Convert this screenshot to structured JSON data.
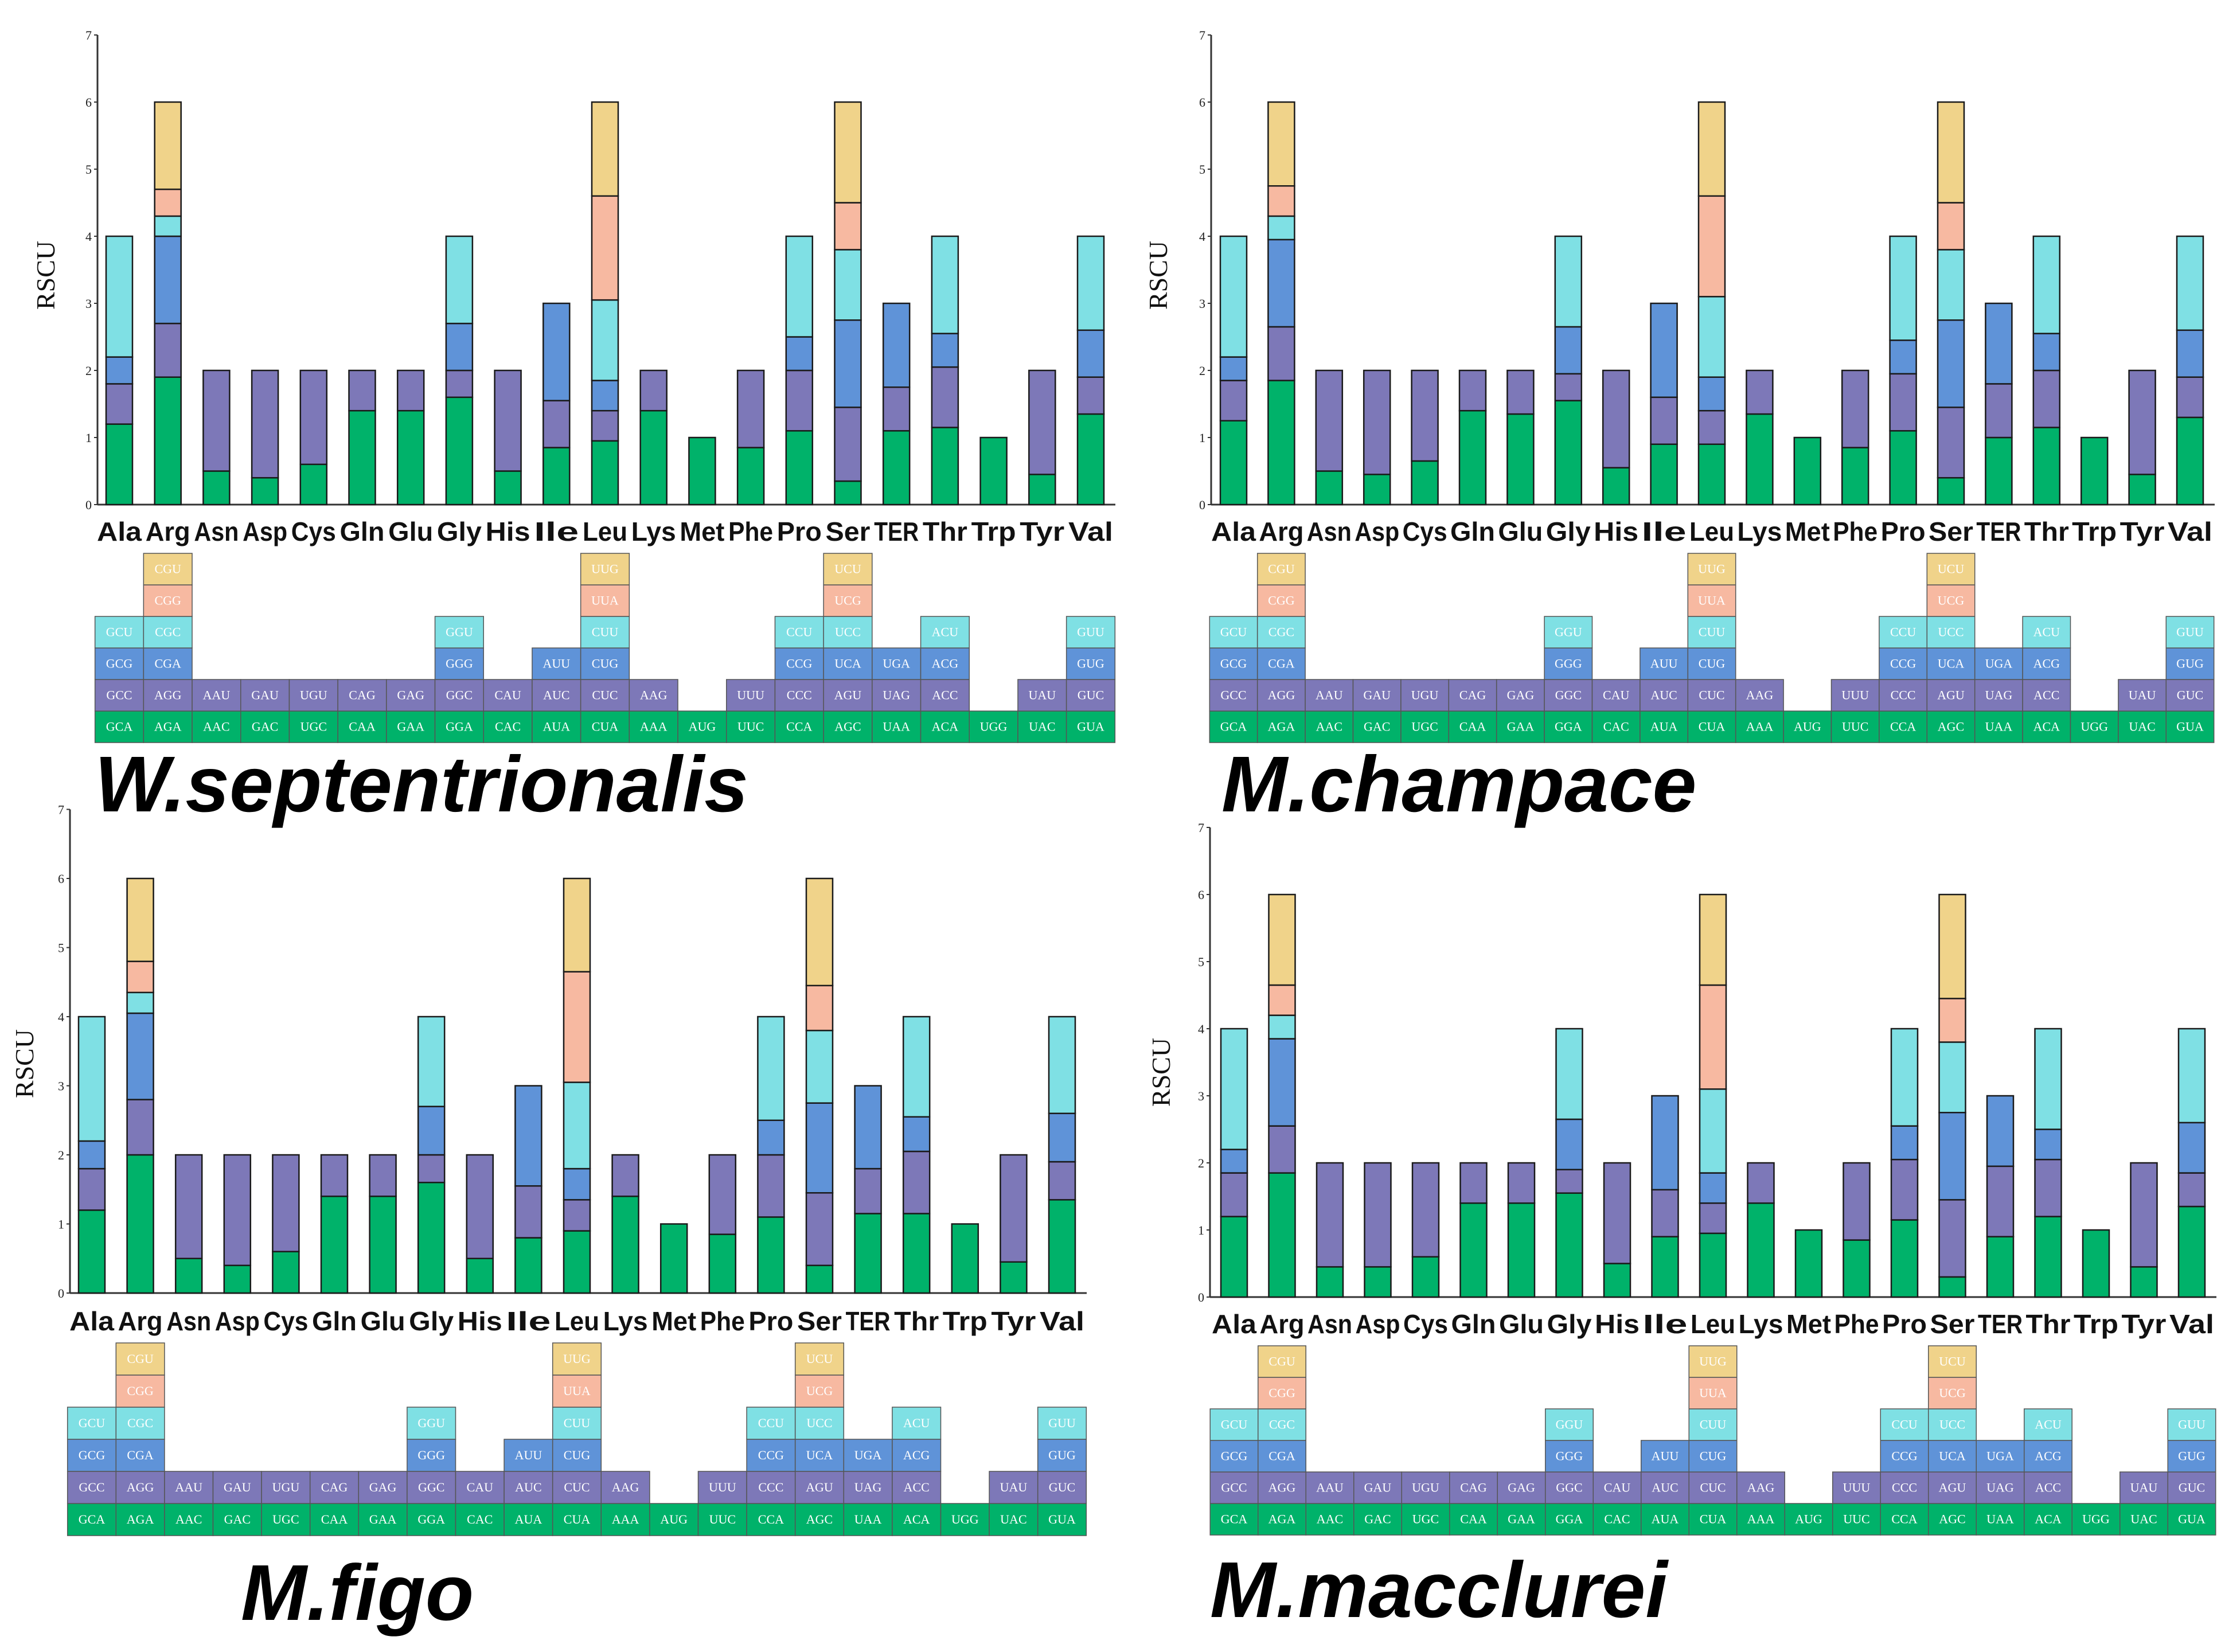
{
  "colors": {
    "c1": "#00b26a",
    "c2": "#7d78b8",
    "c3": "#5f93d8",
    "c4": "#7fe0e4",
    "c5": "#f7b9a1",
    "c6": "#f0d38a"
  },
  "chart_data": [
    {
      "type": "bar",
      "title": "W.septentrionalis",
      "ylabel": "RSCU",
      "ylim": [
        0,
        7
      ],
      "yticks": [
        0,
        1,
        2,
        3,
        4,
        5,
        6,
        7
      ],
      "categories": [
        "Ala",
        "Arg",
        "Asn",
        "Asp",
        "Cys",
        "Gln",
        "Glu",
        "Gly",
        "His",
        "Ile",
        "Leu",
        "Lys",
        "Met",
        "Phe",
        "Pro",
        "Ser",
        "TER",
        "Thr",
        "Trp",
        "Tyr",
        "Val"
      ],
      "stacks": [
        [
          1.2,
          0.6,
          0.4,
          1.8
        ],
        [
          1.9,
          0.8,
          1.3,
          0.3,
          0.4,
          1.3
        ],
        [
          0.5,
          1.5
        ],
        [
          0.4,
          1.6
        ],
        [
          0.6,
          1.4
        ],
        [
          1.4,
          0.6
        ],
        [
          1.4,
          0.6
        ],
        [
          1.6,
          0.4,
          0.7,
          1.3
        ],
        [
          0.5,
          1.5
        ],
        [
          0.85,
          0.7,
          1.45
        ],
        [
          0.95,
          0.45,
          0.45,
          1.2,
          1.55,
          1.4
        ],
        [
          1.4,
          0.6
        ],
        [
          1.0
        ],
        [
          0.85,
          1.15
        ],
        [
          1.1,
          0.9,
          0.5,
          1.5
        ],
        [
          0.35,
          1.1,
          1.3,
          1.05,
          0.7,
          1.5
        ],
        [
          1.1,
          0.65,
          1.25
        ],
        [
          1.15,
          0.9,
          0.5,
          1.45
        ],
        [
          1.0
        ],
        [
          0.45,
          1.55
        ],
        [
          1.35,
          0.55,
          0.7,
          1.4
        ]
      ],
      "codons": [
        [
          "GCA",
          "GCC",
          "GCG",
          "GCU"
        ],
        [
          "AGA",
          "AGG",
          "CGA",
          "CGC",
          "CGG",
          "CGU"
        ],
        [
          "AAC",
          "AAU"
        ],
        [
          "GAC",
          "GAU"
        ],
        [
          "UGC",
          "UGU"
        ],
        [
          "CAA",
          "CAG"
        ],
        [
          "GAA",
          "GAG"
        ],
        [
          "GGA",
          "GGC",
          "GGG",
          "GGU"
        ],
        [
          "CAC",
          "CAU"
        ],
        [
          "AUA",
          "AUC",
          "AUU"
        ],
        [
          "CUA",
          "CUC",
          "CUG",
          "CUU",
          "UUA",
          "UUG"
        ],
        [
          "AAA",
          "AAG"
        ],
        [
          "AUG"
        ],
        [
          "UUC",
          "UUU"
        ],
        [
          "CCA",
          "CCC",
          "CCG",
          "CCU"
        ],
        [
          "AGC",
          "AGU",
          "UCA",
          "UCC",
          "UCG",
          "UCU"
        ],
        [
          "UAA",
          "UAG",
          "UGA"
        ],
        [
          "ACA",
          "ACC",
          "ACG",
          "ACU"
        ],
        [
          "UGG"
        ],
        [
          "UAC",
          "UAU"
        ],
        [
          "GUA",
          "GUC",
          "GUG",
          "GUU"
        ]
      ]
    },
    {
      "type": "bar",
      "title": "M.champace",
      "ylabel": "RSCU",
      "ylim": [
        0,
        7
      ],
      "yticks": [
        0,
        1,
        2,
        3,
        4,
        5,
        6,
        7
      ],
      "categories": [
        "Ala",
        "Arg",
        "Asn",
        "Asp",
        "Cys",
        "Gln",
        "Glu",
        "Gly",
        "His",
        "Ile",
        "Leu",
        "Lys",
        "Met",
        "Phe",
        "Pro",
        "Ser",
        "TER",
        "Thr",
        "Trp",
        "Tyr",
        "Val"
      ],
      "stacks": [
        [
          1.25,
          0.6,
          0.35,
          1.8
        ],
        [
          1.85,
          0.8,
          1.3,
          0.35,
          0.45,
          1.25
        ],
        [
          0.5,
          1.5
        ],
        [
          0.45,
          1.55
        ],
        [
          0.65,
          1.35
        ],
        [
          1.4,
          0.6
        ],
        [
          1.35,
          0.65
        ],
        [
          1.55,
          0.4,
          0.7,
          1.35
        ],
        [
          0.55,
          1.45
        ],
        [
          0.9,
          0.7,
          1.4
        ],
        [
          0.9,
          0.5,
          0.5,
          1.2,
          1.5,
          1.4
        ],
        [
          1.35,
          0.65
        ],
        [
          1.0
        ],
        [
          0.85,
          1.15
        ],
        [
          1.1,
          0.85,
          0.5,
          1.55
        ],
        [
          0.4,
          1.05,
          1.3,
          1.05,
          0.7,
          1.5
        ],
        [
          1.0,
          0.8,
          1.2
        ],
        [
          1.15,
          0.85,
          0.55,
          1.45
        ],
        [
          1.0
        ],
        [
          0.45,
          1.55
        ],
        [
          1.3,
          0.6,
          0.7,
          1.4
        ]
      ],
      "codons": [
        [
          "GCA",
          "GCC",
          "GCG",
          "GCU"
        ],
        [
          "AGA",
          "AGG",
          "CGA",
          "CGC",
          "CGG",
          "CGU"
        ],
        [
          "AAC",
          "AAU"
        ],
        [
          "GAC",
          "GAU"
        ],
        [
          "UGC",
          "UGU"
        ],
        [
          "CAA",
          "CAG"
        ],
        [
          "GAA",
          "GAG"
        ],
        [
          "GGA",
          "GGC",
          "GGG",
          "GGU"
        ],
        [
          "CAC",
          "CAU"
        ],
        [
          "AUA",
          "AUC",
          "AUU"
        ],
        [
          "CUA",
          "CUC",
          "CUG",
          "CUU",
          "UUA",
          "UUG"
        ],
        [
          "AAA",
          "AAG"
        ],
        [
          "AUG"
        ],
        [
          "UUC",
          "UUU"
        ],
        [
          "CCA",
          "CCC",
          "CCG",
          "CCU"
        ],
        [
          "AGC",
          "AGU",
          "UCA",
          "UCC",
          "UCG",
          "UCU"
        ],
        [
          "UAA",
          "UAG",
          "UGA"
        ],
        [
          "ACA",
          "ACC",
          "ACG",
          "ACU"
        ],
        [
          "UGG"
        ],
        [
          "UAC",
          "UAU"
        ],
        [
          "GUA",
          "GUC",
          "GUG",
          "GUU"
        ]
      ]
    },
    {
      "type": "bar",
      "title": "M.figo",
      "ylabel": "RSCU",
      "ylim": [
        0,
        7
      ],
      "yticks": [
        0,
        1,
        2,
        3,
        4,
        5,
        6,
        7
      ],
      "categories": [
        "Ala",
        "Arg",
        "Asn",
        "Asp",
        "Cys",
        "Gln",
        "Glu",
        "Gly",
        "His",
        "Ile",
        "Leu",
        "Lys",
        "Met",
        "Phe",
        "Pro",
        "Ser",
        "TER",
        "Thr",
        "Trp",
        "Tyr",
        "Val"
      ],
      "stacks": [
        [
          1.2,
          0.6,
          0.4,
          1.8
        ],
        [
          2.0,
          0.8,
          1.25,
          0.3,
          0.45,
          1.2
        ],
        [
          0.5,
          1.5
        ],
        [
          0.4,
          1.6
        ],
        [
          0.6,
          1.4
        ],
        [
          1.4,
          0.6
        ],
        [
          1.4,
          0.6
        ],
        [
          1.6,
          0.4,
          0.7,
          1.3
        ],
        [
          0.5,
          1.5
        ],
        [
          0.8,
          0.75,
          1.45
        ],
        [
          0.9,
          0.45,
          0.45,
          1.25,
          1.6,
          1.35
        ],
        [
          1.4,
          0.6
        ],
        [
          1.0
        ],
        [
          0.85,
          1.15
        ],
        [
          1.1,
          0.9,
          0.5,
          1.5
        ],
        [
          0.4,
          1.05,
          1.3,
          1.05,
          0.65,
          1.55
        ],
        [
          1.15,
          0.65,
          1.2
        ],
        [
          1.15,
          0.9,
          0.5,
          1.45
        ],
        [
          1.0
        ],
        [
          0.45,
          1.55
        ],
        [
          1.35,
          0.55,
          0.7,
          1.4
        ]
      ],
      "codons": [
        [
          "GCA",
          "GCC",
          "GCG",
          "GCU"
        ],
        [
          "AGA",
          "AGG",
          "CGA",
          "CGC",
          "CGG",
          "CGU"
        ],
        [
          "AAC",
          "AAU"
        ],
        [
          "GAC",
          "GAU"
        ],
        [
          "UGC",
          "UGU"
        ],
        [
          "CAA",
          "CAG"
        ],
        [
          "GAA",
          "GAG"
        ],
        [
          "GGA",
          "GGC",
          "GGG",
          "GGU"
        ],
        [
          "CAC",
          "CAU"
        ],
        [
          "AUA",
          "AUC",
          "AUU"
        ],
        [
          "CUA",
          "CUC",
          "CUG",
          "CUU",
          "UUA",
          "UUG"
        ],
        [
          "AAA",
          "AAG"
        ],
        [
          "AUG"
        ],
        [
          "UUC",
          "UUU"
        ],
        [
          "CCA",
          "CCC",
          "CCG",
          "CCU"
        ],
        [
          "AGC",
          "AGU",
          "UCA",
          "UCC",
          "UCG",
          "UCU"
        ],
        [
          "UAA",
          "UAG",
          "UGA"
        ],
        [
          "ACA",
          "ACC",
          "ACG",
          "ACU"
        ],
        [
          "UGG"
        ],
        [
          "UAC",
          "UAU"
        ],
        [
          "GUA",
          "GUC",
          "GUG",
          "GUU"
        ]
      ]
    },
    {
      "type": "bar",
      "title": "M.macclurei",
      "ylabel": "RSCU",
      "ylim": [
        0,
        7
      ],
      "yticks": [
        0,
        1,
        2,
        3,
        4,
        5,
        6,
        7
      ],
      "categories": [
        "Ala",
        "Arg",
        "Asn",
        "Asp",
        "Cys",
        "Gln",
        "Glu",
        "Gly",
        "His",
        "Ile",
        "Leu",
        "Lys",
        "Met",
        "Phe",
        "Pro",
        "Ser",
        "TER",
        "Thr",
        "Trp",
        "Tyr",
        "Val"
      ],
      "stacks": [
        [
          1.2,
          0.65,
          0.35,
          1.8
        ],
        [
          1.85,
          0.7,
          1.3,
          0.35,
          0.45,
          1.35
        ],
        [
          0.45,
          1.55
        ],
        [
          0.45,
          1.55
        ],
        [
          0.6,
          1.4
        ],
        [
          1.4,
          0.6
        ],
        [
          1.4,
          0.6
        ],
        [
          1.55,
          0.35,
          0.75,
          1.35
        ],
        [
          0.5,
          1.5
        ],
        [
          0.9,
          0.7,
          1.4
        ],
        [
          0.95,
          0.45,
          0.45,
          1.25,
          1.55,
          1.35
        ],
        [
          1.4,
          0.6
        ],
        [
          1.0
        ],
        [
          0.85,
          1.15
        ],
        [
          1.15,
          0.9,
          0.5,
          1.45
        ],
        [
          0.3,
          1.15,
          1.3,
          1.05,
          0.65,
          1.55
        ],
        [
          0.9,
          1.05,
          1.05
        ],
        [
          1.2,
          0.85,
          0.45,
          1.5
        ],
        [
          1.0
        ],
        [
          0.45,
          1.55
        ],
        [
          1.35,
          0.5,
          0.75,
          1.4
        ]
      ],
      "codons": [
        [
          "GCA",
          "GCC",
          "GCG",
          "GCU"
        ],
        [
          "AGA",
          "AGG",
          "CGA",
          "CGC",
          "CGG",
          "CGU"
        ],
        [
          "AAC",
          "AAU"
        ],
        [
          "GAC",
          "GAU"
        ],
        [
          "UGC",
          "UGU"
        ],
        [
          "CAA",
          "CAG"
        ],
        [
          "GAA",
          "GAG"
        ],
        [
          "GGA",
          "GGC",
          "GGG",
          "GGU"
        ],
        [
          "CAC",
          "CAU"
        ],
        [
          "AUA",
          "AUC",
          "AUU"
        ],
        [
          "CUA",
          "CUC",
          "CUG",
          "CUU",
          "UUA",
          "UUG"
        ],
        [
          "AAA",
          "AAG"
        ],
        [
          "AUG"
        ],
        [
          "UUC",
          "UUU"
        ],
        [
          "CCA",
          "CCC",
          "CCG",
          "CCU"
        ],
        [
          "AGC",
          "AGU",
          "UCA",
          "UCC",
          "UCG",
          "UCU"
        ],
        [
          "UAA",
          "UAG",
          "UGA"
        ],
        [
          "ACA",
          "ACC",
          "ACG",
          "ACU"
        ],
        [
          "UGG"
        ],
        [
          "UAC",
          "UAU"
        ],
        [
          "GUA",
          "GUC",
          "GUG",
          "GUU"
        ]
      ]
    }
  ]
}
